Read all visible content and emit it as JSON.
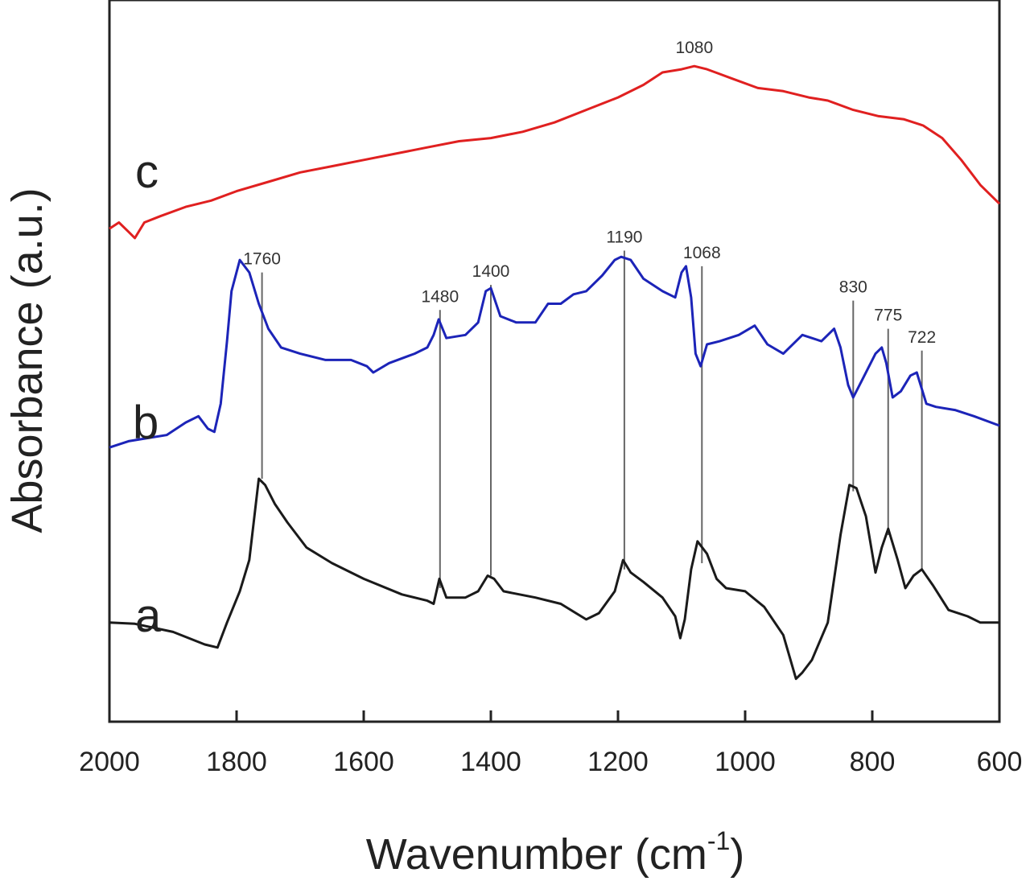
{
  "chart_data": {
    "type": "line",
    "title": "",
    "xlabel": "Wavenumber (cm",
    "xlabel_sup": "-1",
    "xlabel_end": ")",
    "ylabel": "Absorbance (a.u.)",
    "xlim": [
      2000,
      600
    ],
    "x_reversed": true,
    "ylim": [
      0,
      10
    ],
    "grid": false,
    "legend": "none",
    "x_ticks": [
      2000,
      1800,
      1600,
      1400,
      1200,
      1000,
      800,
      600
    ],
    "series": [
      {
        "name": "a",
        "color": "#1a1a1a",
        "points": [
          [
            2000,
            1.2
          ],
          [
            1960,
            1.18
          ],
          [
            1900,
            1.05
          ],
          [
            1850,
            0.85
          ],
          [
            1830,
            0.8
          ],
          [
            1815,
            1.2
          ],
          [
            1795,
            1.7
          ],
          [
            1780,
            2.2
          ],
          [
            1765,
            3.5
          ],
          [
            1755,
            3.4
          ],
          [
            1740,
            3.1
          ],
          [
            1720,
            2.8
          ],
          [
            1690,
            2.4
          ],
          [
            1650,
            2.15
          ],
          [
            1600,
            1.9
          ],
          [
            1540,
            1.65
          ],
          [
            1500,
            1.55
          ],
          [
            1490,
            1.5
          ],
          [
            1481,
            1.9
          ],
          [
            1470,
            1.6
          ],
          [
            1440,
            1.6
          ],
          [
            1420,
            1.7
          ],
          [
            1405,
            1.95
          ],
          [
            1395,
            1.9
          ],
          [
            1380,
            1.7
          ],
          [
            1330,
            1.6
          ],
          [
            1290,
            1.5
          ],
          [
            1250,
            1.25
          ],
          [
            1230,
            1.35
          ],
          [
            1205,
            1.7
          ],
          [
            1192,
            2.2
          ],
          [
            1180,
            2.0
          ],
          [
            1160,
            1.85
          ],
          [
            1130,
            1.6
          ],
          [
            1110,
            1.3
          ],
          [
            1102,
            0.95
          ],
          [
            1095,
            1.25
          ],
          [
            1085,
            2.05
          ],
          [
            1075,
            2.5
          ],
          [
            1060,
            2.3
          ],
          [
            1045,
            1.9
          ],
          [
            1030,
            1.75
          ],
          [
            1000,
            1.7
          ],
          [
            970,
            1.45
          ],
          [
            940,
            1.0
          ],
          [
            920,
            0.3
          ],
          [
            910,
            0.4
          ],
          [
            895,
            0.6
          ],
          [
            870,
            1.2
          ],
          [
            850,
            2.6
          ],
          [
            836,
            3.4
          ],
          [
            825,
            3.35
          ],
          [
            810,
            2.9
          ],
          [
            795,
            2.0
          ],
          [
            785,
            2.4
          ],
          [
            775,
            2.7
          ],
          [
            760,
            2.2
          ],
          [
            748,
            1.75
          ],
          [
            735,
            1.95
          ],
          [
            722,
            2.05
          ],
          [
            705,
            1.8
          ],
          [
            680,
            1.4
          ],
          [
            650,
            1.3
          ],
          [
            630,
            1.2
          ],
          [
            600,
            1.2
          ]
        ]
      },
      {
        "name": "b",
        "color": "#1c24b8",
        "points": [
          [
            2000,
            4.0
          ],
          [
            1970,
            4.1
          ],
          [
            1940,
            4.15
          ],
          [
            1910,
            4.2
          ],
          [
            1880,
            4.4
          ],
          [
            1860,
            4.5
          ],
          [
            1845,
            4.3
          ],
          [
            1835,
            4.25
          ],
          [
            1825,
            4.7
          ],
          [
            1815,
            5.7
          ],
          [
            1808,
            6.5
          ],
          [
            1795,
            7.0
          ],
          [
            1780,
            6.8
          ],
          [
            1765,
            6.3
          ],
          [
            1750,
            5.9
          ],
          [
            1730,
            5.6
          ],
          [
            1700,
            5.5
          ],
          [
            1660,
            5.4
          ],
          [
            1620,
            5.4
          ],
          [
            1595,
            5.3
          ],
          [
            1585,
            5.2
          ],
          [
            1560,
            5.35
          ],
          [
            1520,
            5.5
          ],
          [
            1500,
            5.6
          ],
          [
            1490,
            5.8
          ],
          [
            1482,
            6.05
          ],
          [
            1470,
            5.75
          ],
          [
            1440,
            5.8
          ],
          [
            1420,
            6.0
          ],
          [
            1408,
            6.5
          ],
          [
            1400,
            6.55
          ],
          [
            1385,
            6.1
          ],
          [
            1360,
            6.0
          ],
          [
            1330,
            6.0
          ],
          [
            1310,
            6.3
          ],
          [
            1290,
            6.3
          ],
          [
            1270,
            6.45
          ],
          [
            1250,
            6.5
          ],
          [
            1225,
            6.75
          ],
          [
            1205,
            7.0
          ],
          [
            1195,
            7.05
          ],
          [
            1180,
            7.0
          ],
          [
            1160,
            6.7
          ],
          [
            1130,
            6.5
          ],
          [
            1110,
            6.4
          ],
          [
            1100,
            6.8
          ],
          [
            1093,
            6.9
          ],
          [
            1085,
            6.4
          ],
          [
            1078,
            5.5
          ],
          [
            1070,
            5.3
          ],
          [
            1060,
            5.65
          ],
          [
            1040,
            5.7
          ],
          [
            1010,
            5.8
          ],
          [
            985,
            5.95
          ],
          [
            965,
            5.65
          ],
          [
            940,
            5.5
          ],
          [
            910,
            5.8
          ],
          [
            880,
            5.7
          ],
          [
            860,
            5.9
          ],
          [
            850,
            5.6
          ],
          [
            838,
            5.0
          ],
          [
            830,
            4.8
          ],
          [
            815,
            5.1
          ],
          [
            795,
            5.5
          ],
          [
            785,
            5.6
          ],
          [
            778,
            5.35
          ],
          [
            768,
            4.8
          ],
          [
            755,
            4.9
          ],
          [
            740,
            5.15
          ],
          [
            730,
            5.2
          ],
          [
            715,
            4.7
          ],
          [
            700,
            4.65
          ],
          [
            670,
            4.6
          ],
          [
            640,
            4.5
          ],
          [
            600,
            4.35
          ]
        ]
      },
      {
        "name": "c",
        "color": "#e02020",
        "points": [
          [
            2000,
            7.5
          ],
          [
            1985,
            7.6
          ],
          [
            1970,
            7.45
          ],
          [
            1960,
            7.35
          ],
          [
            1945,
            7.6
          ],
          [
            1920,
            7.7
          ],
          [
            1880,
            7.85
          ],
          [
            1840,
            7.95
          ],
          [
            1800,
            8.1
          ],
          [
            1750,
            8.25
          ],
          [
            1700,
            8.4
          ],
          [
            1650,
            8.5
          ],
          [
            1600,
            8.6
          ],
          [
            1550,
            8.7
          ],
          [
            1500,
            8.8
          ],
          [
            1450,
            8.9
          ],
          [
            1400,
            8.95
          ],
          [
            1350,
            9.05
          ],
          [
            1300,
            9.2
          ],
          [
            1250,
            9.4
          ],
          [
            1200,
            9.6
          ],
          [
            1160,
            9.8
          ],
          [
            1130,
            10.0
          ],
          [
            1100,
            10.05
          ],
          [
            1080,
            10.1
          ],
          [
            1060,
            10.05
          ],
          [
            1020,
            9.9
          ],
          [
            980,
            9.75
          ],
          [
            940,
            9.7
          ],
          [
            900,
            9.6
          ],
          [
            870,
            9.55
          ],
          [
            830,
            9.4
          ],
          [
            790,
            9.3
          ],
          [
            750,
            9.25
          ],
          [
            720,
            9.15
          ],
          [
            690,
            8.95
          ],
          [
            660,
            8.6
          ],
          [
            630,
            8.2
          ],
          [
            600,
            7.9
          ]
        ]
      }
    ],
    "series_labels": [
      "a",
      "b",
      "c"
    ],
    "peak_markers": [
      {
        "label": "1760",
        "x": 1760,
        "y_from": 3.5,
        "y_to": 6.8
      },
      {
        "label": "1480",
        "x": 1480,
        "y_from": 1.75,
        "y_to": 6.2
      },
      {
        "label": "1400",
        "x": 1400,
        "y_from": 1.95,
        "y_to": 6.6
      },
      {
        "label": "1190",
        "x": 1190,
        "y_from": 2.05,
        "y_to": 7.15
      },
      {
        "label": "1068",
        "x": 1068,
        "y_from": 2.15,
        "y_to": 6.9
      },
      {
        "label": "830",
        "x": 830,
        "y_from": 3.3,
        "y_to": 6.35
      },
      {
        "label": "775",
        "x": 775,
        "y_from": 2.6,
        "y_to": 5.9
      },
      {
        "label": "722",
        "x": 722,
        "y_from": 2.05,
        "y_to": 5.55
      }
    ],
    "annotations": [
      {
        "label": "1080",
        "x": 1080,
        "y": 10.1
      }
    ]
  }
}
